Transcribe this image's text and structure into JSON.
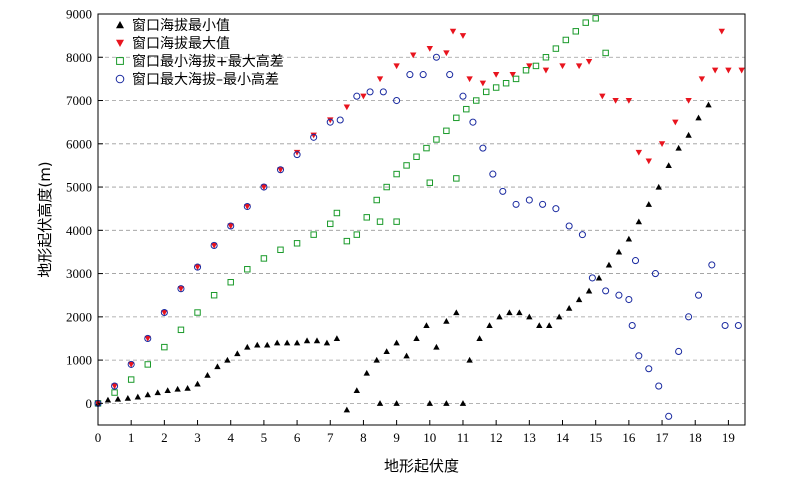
{
  "chart_data": {
    "type": "scatter",
    "title": "",
    "xlabel": "地形起伏度",
    "ylabel": "地形起伏高度(m)",
    "xlim": [
      0,
      19.5
    ],
    "ylim": [
      -500,
      9000
    ],
    "x_ticks": [
      "0",
      "1",
      "2",
      "3",
      "4",
      "5",
      "6",
      "7",
      "8",
      "9",
      "10",
      "11",
      "12",
      "13",
      "14",
      "15",
      "16",
      "17",
      "18",
      "19"
    ],
    "y_ticks": [
      "0",
      "1000",
      "2000",
      "3000",
      "4000",
      "5000",
      "6000",
      "7000",
      "8000",
      "9000"
    ],
    "grid": "horizontal-dashed",
    "legend_position": "top-left",
    "colors": {
      "black": "#000000",
      "red": "#e8141e",
      "green": "#1a9a2a",
      "blue": "#1a2aa0"
    },
    "series": [
      {
        "name": "窗口海拔最小值",
        "marker": "triangle-up",
        "color": "#000000",
        "points": [
          [
            0,
            0
          ],
          [
            0.3,
            80
          ],
          [
            0.6,
            100
          ],
          [
            0.9,
            120
          ],
          [
            1.2,
            150
          ],
          [
            1.5,
            200
          ],
          [
            1.8,
            250
          ],
          [
            2.1,
            300
          ],
          [
            2.4,
            330
          ],
          [
            2.7,
            350
          ],
          [
            3.0,
            450
          ],
          [
            3.3,
            650
          ],
          [
            3.6,
            850
          ],
          [
            3.9,
            1000
          ],
          [
            4.2,
            1150
          ],
          [
            4.5,
            1300
          ],
          [
            4.8,
            1350
          ],
          [
            5.1,
            1350
          ],
          [
            5.4,
            1400
          ],
          [
            5.7,
            1400
          ],
          [
            6.0,
            1400
          ],
          [
            6.3,
            1450
          ],
          [
            6.6,
            1450
          ],
          [
            6.9,
            1400
          ],
          [
            7.2,
            1500
          ],
          [
            7.5,
            -150
          ],
          [
            7.8,
            300
          ],
          [
            8.1,
            700
          ],
          [
            8.4,
            1000
          ],
          [
            8.7,
            1200
          ],
          [
            9.0,
            1400
          ],
          [
            8.5,
            0
          ],
          [
            9.0,
            0
          ],
          [
            9.3,
            1100
          ],
          [
            9.6,
            1500
          ],
          [
            9.9,
            1800
          ],
          [
            10.2,
            1300
          ],
          [
            10.5,
            1900
          ],
          [
            10.8,
            2100
          ],
          [
            10.0,
            0
          ],
          [
            10.5,
            0
          ],
          [
            11.0,
            0
          ],
          [
            11.2,
            1000
          ],
          [
            11.5,
            1500
          ],
          [
            11.8,
            1800
          ],
          [
            12.1,
            2000
          ],
          [
            12.4,
            2100
          ],
          [
            12.7,
            2100
          ],
          [
            13.0,
            2000
          ],
          [
            13.3,
            1800
          ],
          [
            13.6,
            1800
          ],
          [
            13.9,
            2000
          ],
          [
            14.2,
            2200
          ],
          [
            14.5,
            2400
          ],
          [
            14.8,
            2600
          ],
          [
            15.1,
            2900
          ],
          [
            15.4,
            3200
          ],
          [
            15.7,
            3500
          ],
          [
            16.0,
            3800
          ],
          [
            16.3,
            4200
          ],
          [
            16.6,
            4600
          ],
          [
            16.9,
            5000
          ],
          [
            17.2,
            5500
          ],
          [
            17.5,
            5900
          ],
          [
            17.8,
            6200
          ],
          [
            18.1,
            6600
          ],
          [
            18.4,
            6900
          ]
        ]
      },
      {
        "name": "窗口海拔最大值",
        "marker": "triangle-down",
        "color": "#e8141e",
        "points": [
          [
            0,
            0
          ],
          [
            0.5,
            400
          ],
          [
            1.0,
            900
          ],
          [
            1.5,
            1500
          ],
          [
            2.0,
            2100
          ],
          [
            2.5,
            2650
          ],
          [
            3.0,
            3150
          ],
          [
            3.5,
            3650
          ],
          [
            4.0,
            4100
          ],
          [
            4.5,
            4550
          ],
          [
            5.0,
            5000
          ],
          [
            5.5,
            5400
          ],
          [
            6.0,
            5800
          ],
          [
            6.5,
            6200
          ],
          [
            7.0,
            6550
          ],
          [
            7.5,
            6850
          ],
          [
            8.0,
            7100
          ],
          [
            8.5,
            7500
          ],
          [
            9.0,
            7800
          ],
          [
            9.5,
            8050
          ],
          [
            10.0,
            8200
          ],
          [
            10.5,
            8100
          ],
          [
            10.7,
            8600
          ],
          [
            11.0,
            8500
          ],
          [
            11.2,
            7500
          ],
          [
            11.6,
            7400
          ],
          [
            12.0,
            7600
          ],
          [
            12.5,
            7600
          ],
          [
            13.0,
            7800
          ],
          [
            13.5,
            7700
          ],
          [
            14.0,
            7800
          ],
          [
            14.5,
            7800
          ],
          [
            14.8,
            7900
          ],
          [
            15.2,
            7100
          ],
          [
            15.6,
            7000
          ],
          [
            16.0,
            7000
          ],
          [
            16.3,
            5800
          ],
          [
            16.6,
            5600
          ],
          [
            17.0,
            6000
          ],
          [
            17.4,
            6500
          ],
          [
            17.8,
            7000
          ],
          [
            18.2,
            7500
          ],
          [
            18.6,
            7700
          ],
          [
            19.0,
            7700
          ],
          [
            19.4,
            7700
          ],
          [
            18.8,
            8600
          ]
        ]
      },
      {
        "name": "窗口最小海拔+最大高差",
        "marker": "square-open",
        "color": "#1a9a2a",
        "points": [
          [
            0,
            0
          ],
          [
            0.5,
            250
          ],
          [
            1.0,
            550
          ],
          [
            1.5,
            900
          ],
          [
            2.0,
            1300
          ],
          [
            2.5,
            1700
          ],
          [
            3.0,
            2100
          ],
          [
            3.5,
            2500
          ],
          [
            4.0,
            2800
          ],
          [
            4.5,
            3100
          ],
          [
            5.0,
            3350
          ],
          [
            5.5,
            3550
          ],
          [
            6.0,
            3700
          ],
          [
            6.5,
            3900
          ],
          [
            7.0,
            4150
          ],
          [
            7.2,
            4400
          ],
          [
            7.5,
            3750
          ],
          [
            7.8,
            3900
          ],
          [
            8.1,
            4300
          ],
          [
            8.4,
            4700
          ],
          [
            8.7,
            5000
          ],
          [
            9.0,
            5300
          ],
          [
            9.3,
            5500
          ],
          [
            9.6,
            5700
          ],
          [
            9.9,
            5900
          ],
          [
            10.2,
            6100
          ],
          [
            10.5,
            6300
          ],
          [
            10.8,
            6600
          ],
          [
            11.1,
            6800
          ],
          [
            11.4,
            7000
          ],
          [
            11.7,
            7200
          ],
          [
            12.0,
            7300
          ],
          [
            12.3,
            7400
          ],
          [
            12.6,
            7500
          ],
          [
            12.9,
            7700
          ],
          [
            13.2,
            7800
          ],
          [
            13.5,
            8000
          ],
          [
            13.8,
            8200
          ],
          [
            14.1,
            8400
          ],
          [
            14.4,
            8600
          ],
          [
            14.7,
            8800
          ],
          [
            15.0,
            8900
          ],
          [
            15.3,
            8100
          ],
          [
            10.0,
            5100
          ],
          [
            10.8,
            5200
          ],
          [
            8.5,
            4200
          ],
          [
            9.0,
            4200
          ]
        ]
      },
      {
        "name": "窗口最大海拔–最小高差",
        "marker": "circle-open",
        "color": "#1a2aa0",
        "points": [
          [
            0,
            0
          ],
          [
            0.5,
            400
          ],
          [
            1.0,
            900
          ],
          [
            1.5,
            1500
          ],
          [
            2.0,
            2100
          ],
          [
            2.5,
            2650
          ],
          [
            3.0,
            3150
          ],
          [
            3.5,
            3650
          ],
          [
            4.0,
            4100
          ],
          [
            4.5,
            4550
          ],
          [
            5.0,
            5000
          ],
          [
            5.5,
            5400
          ],
          [
            6.0,
            5750
          ],
          [
            6.5,
            6150
          ],
          [
            7.0,
            6500
          ],
          [
            7.3,
            6550
          ],
          [
            7.8,
            7100
          ],
          [
            8.2,
            7200
          ],
          [
            8.6,
            7200
          ],
          [
            9.0,
            7000
          ],
          [
            9.4,
            7600
          ],
          [
            9.8,
            7600
          ],
          [
            10.2,
            8000
          ],
          [
            10.6,
            7600
          ],
          [
            11.0,
            7100
          ],
          [
            11.3,
            6500
          ],
          [
            11.6,
            5900
          ],
          [
            11.9,
            5300
          ],
          [
            12.2,
            4900
          ],
          [
            12.6,
            4600
          ],
          [
            13.0,
            4700
          ],
          [
            13.4,
            4600
          ],
          [
            13.8,
            4500
          ],
          [
            14.2,
            4100
          ],
          [
            14.6,
            3900
          ],
          [
            14.9,
            2900
          ],
          [
            15.3,
            2600
          ],
          [
            15.7,
            2500
          ],
          [
            16.0,
            2400
          ],
          [
            16.1,
            1800
          ],
          [
            16.3,
            1100
          ],
          [
            16.6,
            800
          ],
          [
            16.9,
            400
          ],
          [
            17.2,
            -300
          ],
          [
            17.5,
            1200
          ],
          [
            17.8,
            2000
          ],
          [
            18.1,
            2500
          ],
          [
            18.5,
            3200
          ],
          [
            18.9,
            1800
          ],
          [
            19.3,
            1800
          ],
          [
            16.2,
            3300
          ],
          [
            16.8,
            3000
          ]
        ]
      }
    ]
  }
}
